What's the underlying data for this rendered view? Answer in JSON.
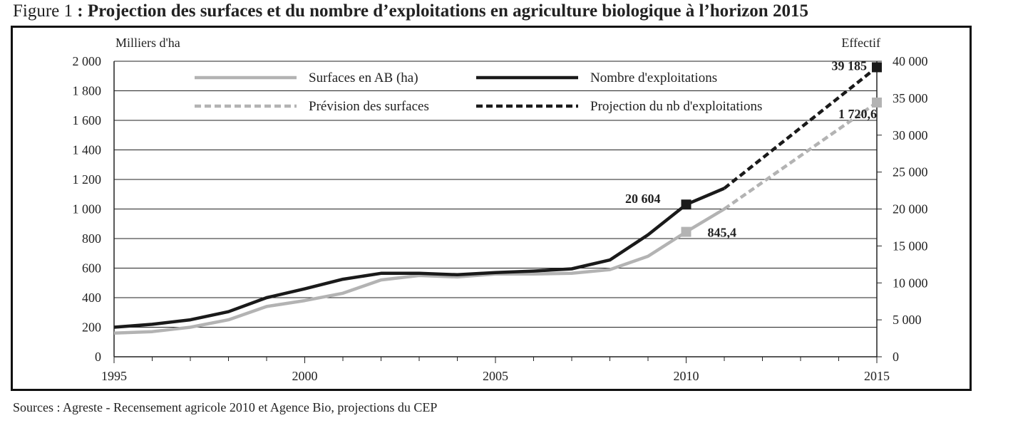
{
  "figure": {
    "label": "Figure 1",
    "title": " : Projection des surfaces et du nombre d’exploitations en agriculture biologique à l’horizon 2015"
  },
  "sources": "Sources : Agreste - Recensement agricole 2010 et Agence Bio, projections du CEP",
  "chart_data": {
    "type": "line",
    "x_ticks": [
      1995,
      2000,
      2005,
      2010,
      2015
    ],
    "xlim": [
      1995,
      2015
    ],
    "grid": true,
    "legend_position": "top-left",
    "left_axis": {
      "label": "Milliers d'ha",
      "ylim": [
        0,
        2000
      ],
      "ticks": [
        0,
        200,
        400,
        600,
        800,
        1000,
        1200,
        1400,
        1600,
        1800,
        2000
      ],
      "tick_labels": [
        "0",
        "200",
        "400",
        "600",
        "800",
        "1 000",
        "1 200",
        "1 400",
        "1 600",
        "1 800",
        "2 000"
      ]
    },
    "right_axis": {
      "label": "Effectif",
      "ylim": [
        0,
        40000
      ],
      "ticks": [
        0,
        5000,
        10000,
        15000,
        20000,
        25000,
        30000,
        35000,
        40000
      ],
      "tick_labels": [
        "0",
        "5 000",
        "10 000",
        "15 000",
        "20 000",
        "25 000",
        "30 000",
        "35 000",
        "40 000"
      ]
    },
    "series": [
      {
        "name": "Surfaces en AB (ha)",
        "axis": "left",
        "color": "#b3b3b3",
        "dashed": false,
        "points": [
          [
            1995,
            160
          ],
          [
            1996,
            170
          ],
          [
            1997,
            200
          ],
          [
            1998,
            250
          ],
          [
            1999,
            340
          ],
          [
            2000,
            380
          ],
          [
            2001,
            430
          ],
          [
            2002,
            520
          ],
          [
            2003,
            550
          ],
          [
            2004,
            540
          ],
          [
            2005,
            560
          ],
          [
            2006,
            560
          ],
          [
            2007,
            565
          ],
          [
            2008,
            590
          ],
          [
            2009,
            680
          ],
          [
            2010,
            845.4
          ],
          [
            2011,
            1000
          ]
        ]
      },
      {
        "name": "Nombre d'exploitations",
        "axis": "right",
        "color": "#1a1a1a",
        "dashed": false,
        "points": [
          [
            1995,
            4000
          ],
          [
            1996,
            4400
          ],
          [
            1997,
            5000
          ],
          [
            1998,
            6100
          ],
          [
            1999,
            8000
          ],
          [
            2000,
            9200
          ],
          [
            2001,
            10500
          ],
          [
            2002,
            11300
          ],
          [
            2003,
            11300
          ],
          [
            2004,
            11100
          ],
          [
            2005,
            11400
          ],
          [
            2006,
            11600
          ],
          [
            2007,
            11900
          ],
          [
            2008,
            13100
          ],
          [
            2009,
            16500
          ],
          [
            2010,
            20604
          ],
          [
            2011,
            22800
          ]
        ]
      },
      {
        "name": "Prévision des surfaces",
        "axis": "left",
        "color": "#b3b3b3",
        "dashed": true,
        "points": [
          [
            2011,
            1000
          ],
          [
            2015,
            1720.6
          ]
        ]
      },
      {
        "name": "Projection du nb d'exploitations",
        "axis": "right",
        "color": "#1a1a1a",
        "dashed": true,
        "points": [
          [
            2011,
            22800
          ],
          [
            2015,
            39185
          ]
        ]
      }
    ],
    "markers": [
      {
        "series": "Nombre d'exploitations",
        "x": 2010,
        "y": 20604,
        "axis": "right",
        "color": "#1a1a1a",
        "label": "20 604"
      },
      {
        "series": "Projection du nb d'exploitations",
        "x": 2015,
        "y": 39185,
        "axis": "right",
        "color": "#1a1a1a",
        "label": "39 185"
      },
      {
        "series": "Surfaces en AB (ha)",
        "x": 2010,
        "y": 845.4,
        "axis": "left",
        "color": "#b3b3b3",
        "label": "845,4"
      },
      {
        "series": "Prévision des surfaces",
        "x": 2015,
        "y": 1720.6,
        "axis": "left",
        "color": "#b3b3b3",
        "label": "1 720,6"
      }
    ]
  }
}
